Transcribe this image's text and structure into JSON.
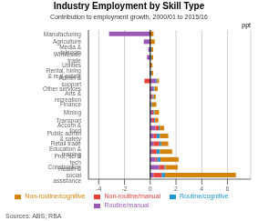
{
  "chart_data": {
    "type": "bar",
    "orientation": "horizontal",
    "stacked": true,
    "title": "Industry Employment by Skill Type",
    "subtitle": "Contribution to employment growth, 2000/01 to 2015/16",
    "source": "Sources:   ABS; RBA",
    "annotation": "ppt",
    "categories": [
      "Manufacturing",
      "Agriculture",
      "Media & telecom",
      "Wholesale trade",
      "Utilities",
      "Rental, hiring & real estate",
      "Admin & support",
      "Other services",
      "Arts & recreation",
      "Finance",
      "Mining",
      "Transport",
      "Accom & food",
      "Public admin & safety",
      "Retail trade",
      "Education & training",
      "Prof, sci & tech",
      "Construction",
      "Health & social assistance"
    ],
    "series": [
      {
        "name": "Routine/manual",
        "color": "#9b59b6",
        "values": [
          -3.2,
          -0.5,
          -0.15,
          -0.25,
          -0.05,
          -0.05,
          0.45,
          0.25,
          0.1,
          0.05,
          0.15,
          0.15,
          0.4,
          0.25,
          0.25,
          0.15,
          0.4,
          0.7,
          0.25
        ]
      },
      {
        "name": "Non-routine/manual",
        "color": "#e8413c",
        "values": [
          0.0,
          0.0,
          0.0,
          0.0,
          0.0,
          0.0,
          -0.45,
          0.0,
          0.1,
          0.0,
          0.1,
          0.15,
          0.25,
          0.25,
          0.45,
          0.35,
          0.15,
          0.4,
          0.65
        ]
      },
      {
        "name": "Routine/cognitive",
        "color": "#2196d0",
        "values": [
          0.0,
          0.0,
          0.08,
          0.08,
          0.02,
          0.08,
          0.08,
          0.08,
          0.08,
          0.08,
          0.08,
          0.08,
          0.08,
          0.25,
          0.15,
          0.25,
          0.25,
          0.08,
          0.25
        ]
      },
      {
        "name": "Non-routine/cognitive",
        "color": "#d4820a",
        "values": [
          0.25,
          0.35,
          0.15,
          0.15,
          0.15,
          0.15,
          0.15,
          0.25,
          0.15,
          0.35,
          0.35,
          0.25,
          0.35,
          0.65,
          0.55,
          0.95,
          1.4,
          0.95,
          5.5
        ]
      }
    ],
    "xlim": [
      -4.8,
      7.8
    ],
    "xticks": [
      -4,
      -2,
      0,
      2,
      4,
      6
    ],
    "grid": true,
    "legend": "bottom"
  }
}
